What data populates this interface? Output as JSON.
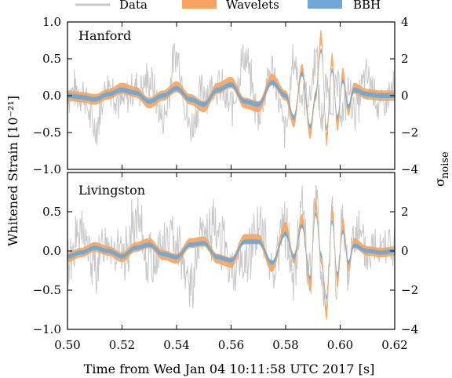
{
  "chart_data": {
    "type": "line",
    "xlabel": "Time from Wed Jan 04 10:11:58 UTC 2017 [s]",
    "ylabel_left": "Whitened Strain [10⁻²¹]",
    "ylabel_right_main": "σ",
    "ylabel_right_sub": "noise",
    "x_ticks": [
      "0.50",
      "0.52",
      "0.54",
      "0.56",
      "0.58",
      "0.60",
      "0.62"
    ],
    "xlim": [
      0.5,
      0.62
    ],
    "legend": {
      "placement": "top",
      "entries": [
        {
          "name": "Data",
          "color": "#c8c8c8"
        },
        {
          "name": "Wavelets",
          "color": "#f4a460"
        },
        {
          "name": "BBH",
          "color": "#6fa8d6"
        }
      ]
    },
    "panels": [
      {
        "label": "Hanford",
        "ylim": [
          -1.0,
          1.0
        ],
        "y_ticks_left": [
          "1.0",
          "0.5",
          "0.0",
          "−0.5",
          "−1.0"
        ],
        "y_ticks_right": [
          "4",
          "2",
          "0",
          "−2",
          "−4"
        ],
        "y_ticks_right_values": [
          4,
          2,
          0,
          -2,
          -4
        ],
        "seed": 7,
        "data_noise": 0.16,
        "band_width": 0.07,
        "series": [
          {
            "name": "Data",
            "x": [
              0.5,
              0.505,
              0.51,
              0.515,
              0.52,
              0.525,
              0.53,
              0.535,
              0.54,
              0.545,
              0.55,
              0.555,
              0.56,
              0.565,
              0.57,
              0.575,
              0.58,
              0.583,
              0.586,
              0.589,
              0.591,
              0.593,
              0.595,
              0.597,
              0.599,
              0.601,
              0.603,
              0.605,
              0.61,
              0.615,
              0.62
            ],
            "y": [
              0.05,
              0.1,
              -0.5,
              0.2,
              -0.2,
              0.1,
              0.3,
              -0.4,
              0.6,
              -0.5,
              0.2,
              0.1,
              -0.3,
              0.7,
              -0.2,
              0.3,
              -0.6,
              0.8,
              -0.2,
              0.3,
              0.7,
              -0.9,
              0.5,
              -0.4,
              0.4,
              -0.5,
              0.2,
              -0.3,
              0.3,
              -0.2,
              0.1
            ]
          },
          {
            "name": "Wavelets",
            "x": [
              0.5,
              0.505,
              0.51,
              0.515,
              0.52,
              0.525,
              0.53,
              0.535,
              0.54,
              0.545,
              0.55,
              0.555,
              0.56,
              0.565,
              0.57,
              0.575,
              0.58,
              0.583,
              0.586,
              0.589,
              0.591,
              0.593,
              0.595,
              0.597,
              0.599,
              0.601,
              0.603,
              0.605,
              0.61,
              0.615,
              0.62
            ],
            "y": [
              0.0,
              -0.02,
              -0.05,
              0.02,
              0.1,
              0.05,
              -0.1,
              0.0,
              0.12,
              -0.05,
              -0.15,
              0.1,
              0.18,
              -0.1,
              -0.15,
              0.22,
              0.0,
              -0.35,
              0.35,
              -0.5,
              0.0,
              0.8,
              -0.6,
              0.5,
              -0.4,
              0.3,
              -0.2,
              0.1,
              0.02,
              0.0,
              0.0
            ]
          },
          {
            "name": "BBH",
            "x": [
              0.5,
              0.505,
              0.51,
              0.515,
              0.52,
              0.525,
              0.53,
              0.535,
              0.54,
              0.545,
              0.55,
              0.555,
              0.56,
              0.565,
              0.57,
              0.575,
              0.58,
              0.583,
              0.586,
              0.589,
              0.591,
              0.593,
              0.595,
              0.597,
              0.599,
              0.601,
              0.603,
              0.605,
              0.61,
              0.615,
              0.62
            ],
            "y": [
              0.0,
              -0.02,
              -0.05,
              0.02,
              0.08,
              0.04,
              -0.08,
              0.0,
              0.1,
              -0.05,
              -0.12,
              0.08,
              0.15,
              -0.08,
              -0.12,
              0.18,
              0.0,
              -0.3,
              0.3,
              -0.42,
              0.0,
              0.62,
              -0.45,
              0.35,
              -0.3,
              0.2,
              -0.15,
              0.08,
              0.02,
              0.0,
              0.0
            ]
          }
        ]
      },
      {
        "label": "Livingston",
        "ylim": [
          -1.0,
          1.0
        ],
        "y_ticks_left": [
          "0.5",
          "0.0",
          "−0.5",
          "−1.0"
        ],
        "y_ticks_left_values": [
          0.5,
          0.0,
          -0.5,
          -1.0
        ],
        "y_ticks_right": [
          "2",
          "0",
          "−2",
          "−4"
        ],
        "y_ticks_right_values": [
          2,
          0,
          -2,
          -4
        ],
        "seed": 13,
        "data_noise": 0.2,
        "band_width": 0.06,
        "series": [
          {
            "name": "Data",
            "x": [
              0.5,
              0.505,
              0.51,
              0.515,
              0.52,
              0.525,
              0.53,
              0.535,
              0.54,
              0.545,
              0.55,
              0.555,
              0.56,
              0.565,
              0.57,
              0.575,
              0.58,
              0.583,
              0.586,
              0.589,
              0.591,
              0.593,
              0.595,
              0.597,
              0.599,
              0.601,
              0.603,
              0.605,
              0.61,
              0.615,
              0.62
            ],
            "y": [
              -0.1,
              0.3,
              -0.3,
              0.2,
              -0.1,
              0.4,
              -0.2,
              0.1,
              0.3,
              -0.6,
              0.2,
              0.4,
              -0.2,
              -0.3,
              0.3,
              -0.1,
              0.2,
              -0.4,
              0.5,
              -0.2,
              0.6,
              -0.3,
              -0.5,
              0.4,
              -0.3,
              0.2,
              -0.2,
              0.3,
              -0.1,
              0.2,
              0.0
            ]
          },
          {
            "name": "Wavelets",
            "x": [
              0.5,
              0.505,
              0.51,
              0.515,
              0.52,
              0.525,
              0.53,
              0.535,
              0.54,
              0.545,
              0.55,
              0.555,
              0.56,
              0.565,
              0.57,
              0.575,
              0.58,
              0.583,
              0.586,
              0.589,
              0.591,
              0.593,
              0.595,
              0.597,
              0.599,
              0.601,
              0.603,
              0.605,
              0.61,
              0.615,
              0.62
            ],
            "y": [
              -0.08,
              -0.02,
              0.05,
              0.0,
              -0.08,
              0.05,
              0.1,
              -0.05,
              -0.1,
              0.1,
              0.12,
              -0.1,
              -0.15,
              0.15,
              0.15,
              -0.2,
              0.3,
              -0.1,
              0.4,
              -0.45,
              0.6,
              -0.1,
              -0.8,
              0.5,
              -0.4,
              0.35,
              -0.2,
              0.1,
              0.0,
              -0.02,
              0.0
            ]
          },
          {
            "name": "BBH",
            "x": [
              0.5,
              0.505,
              0.51,
              0.515,
              0.52,
              0.525,
              0.53,
              0.535,
              0.54,
              0.545,
              0.55,
              0.555,
              0.56,
              0.565,
              0.57,
              0.575,
              0.58,
              0.583,
              0.586,
              0.589,
              0.591,
              0.593,
              0.595,
              0.597,
              0.599,
              0.601,
              0.603,
              0.605,
              0.61,
              0.615,
              0.62
            ],
            "y": [
              -0.07,
              -0.02,
              0.04,
              0.0,
              -0.07,
              0.04,
              0.08,
              -0.04,
              -0.08,
              0.08,
              0.1,
              -0.08,
              -0.12,
              0.12,
              0.12,
              -0.15,
              0.22,
              -0.08,
              0.32,
              -0.35,
              0.48,
              -0.05,
              -0.6,
              0.38,
              -0.3,
              0.25,
              -0.15,
              0.07,
              0.0,
              -0.02,
              0.0
            ]
          }
        ]
      }
    ]
  },
  "colors": {
    "data": "#c8c8c8",
    "wavelets": "#f4a460",
    "bbh": "#6fa8d6",
    "bbh_line": "#4a7fb0",
    "axis": "#000000"
  }
}
